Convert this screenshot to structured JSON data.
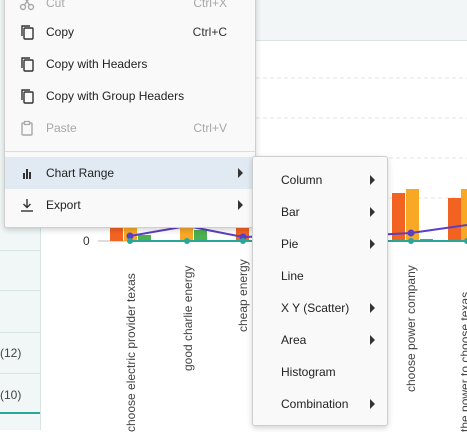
{
  "grid": {
    "row_counts": [
      "(12)",
      "(10)"
    ]
  },
  "chart_data": {
    "type": "bar",
    "categories": [
      "choose electric provider texas",
      "good charlie energy",
      "cheap energy",
      "choose power company",
      "the power to choose texas"
    ],
    "y_tick_label": "0",
    "colors": {
      "orange": "#f26322",
      "yellow": "#f9a825",
      "green": "#4caf50",
      "line": "#5b3fc4",
      "teal": "#2aa59a"
    }
  },
  "context_menu": {
    "items": [
      {
        "label": "Cut",
        "shortcut": "Ctrl+X",
        "icon": "scissors-icon",
        "disabled": true
      },
      {
        "label": "Copy",
        "shortcut": "Ctrl+C",
        "icon": "copy-icon",
        "disabled": false
      },
      {
        "label": "Copy with Headers",
        "shortcut": "",
        "icon": "copy-icon",
        "disabled": false
      },
      {
        "label": "Copy with Group Headers",
        "shortcut": "",
        "icon": "copy-icon",
        "disabled": false
      },
      {
        "label": "Paste",
        "shortcut": "Ctrl+V",
        "icon": "paste-icon",
        "disabled": true
      },
      {
        "label": "Chart Range",
        "shortcut": "",
        "icon": "bar-chart-icon",
        "submenu": true,
        "active": true
      },
      {
        "label": "Export",
        "shortcut": "",
        "icon": "download-icon",
        "submenu": true
      }
    ]
  },
  "chart_range_submenu": {
    "items": [
      {
        "label": "Column",
        "submenu": true
      },
      {
        "label": "Bar",
        "submenu": true
      },
      {
        "label": "Pie",
        "submenu": true
      },
      {
        "label": "Line",
        "submenu": false
      },
      {
        "label": "X Y (Scatter)",
        "submenu": true
      },
      {
        "label": "Area",
        "submenu": true
      },
      {
        "label": "Histogram",
        "submenu": false
      },
      {
        "label": "Combination",
        "submenu": true
      }
    ]
  }
}
